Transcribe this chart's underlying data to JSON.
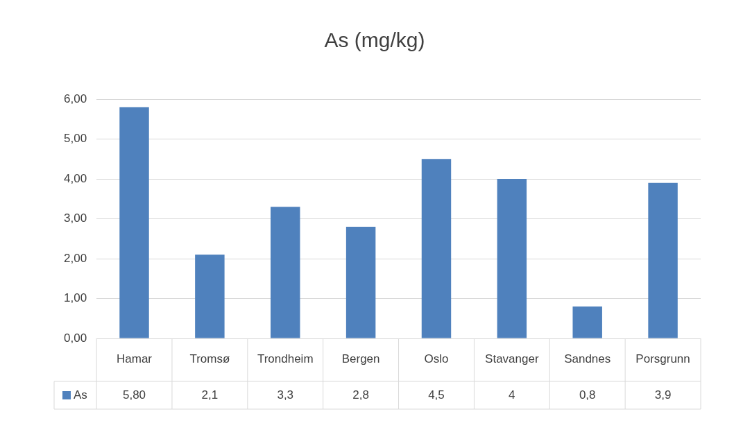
{
  "chart_data": {
    "type": "bar",
    "title": "As (mg/kg)",
    "categories": [
      "Hamar",
      "Tromsø",
      "Trondheim",
      "Bergen",
      "Oslo",
      "Stavanger",
      "Sandnes",
      "Porsgrunn"
    ],
    "series": [
      {
        "name": "As",
        "color": "#4f81bd",
        "values": [
          5.8,
          2.1,
          3.3,
          2.8,
          4.5,
          4,
          0.8,
          3.9
        ],
        "value_labels": [
          "5,80",
          "2,1",
          "3,3",
          "2,8",
          "4,5",
          "4",
          "0,8",
          "3,9"
        ]
      }
    ],
    "ylim": [
      0,
      6
    ],
    "yticks": [
      {
        "value": 0,
        "label": "0,00"
      },
      {
        "value": 1,
        "label": "1,00"
      },
      {
        "value": 2,
        "label": "2,00"
      },
      {
        "value": 3,
        "label": "3,00"
      },
      {
        "value": 4,
        "label": "4,00"
      },
      {
        "value": 5,
        "label": "5,00"
      },
      {
        "value": 6,
        "label": "6,00"
      }
    ],
    "grid": "y",
    "legend": "bottom"
  }
}
